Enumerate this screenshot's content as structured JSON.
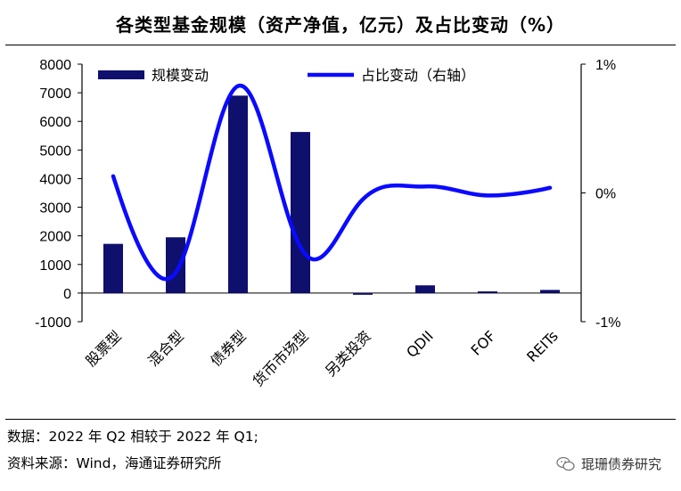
{
  "title": "各类型基金规模（资产净值，亿元）及占比变动（%）",
  "chart_data": {
    "type": "bar",
    "categories": [
      "股票型",
      "混合型",
      "债券型",
      "货币市场型",
      "另类投资",
      "QDII",
      "FOF",
      "REITs"
    ],
    "series": [
      {
        "name": "规模变动",
        "kind": "bar",
        "axis": "left",
        "values": [
          1720,
          1950,
          6900,
          5630,
          -60,
          270,
          60,
          110
        ]
      },
      {
        "name": "占比变动（右轴）",
        "kind": "line",
        "axis": "right",
        "values": [
          0.13,
          -0.62,
          0.83,
          -0.42,
          -0.05,
          0.05,
          -0.02,
          0.04
        ]
      }
    ],
    "y_left": {
      "min": -1000,
      "max": 8000,
      "ticks": [
        "8000",
        "7000",
        "6000",
        "5000",
        "4000",
        "3000",
        "2000",
        "1000",
        "0",
        "-1000"
      ]
    },
    "y_right": {
      "min": -1,
      "max": 1,
      "ticks": [
        "1%",
        "0%",
        "-1%"
      ]
    },
    "legend_position": "top",
    "colors": {
      "bar": "#0f0f6e",
      "line": "#0a0aff"
    }
  },
  "notes": {
    "line1": "数据：2022 年 Q2 相较于 2022 年 Q1;",
    "line2": "资料来源：Wind，海通证券研究所"
  },
  "watermark": "琨珊债券研究"
}
